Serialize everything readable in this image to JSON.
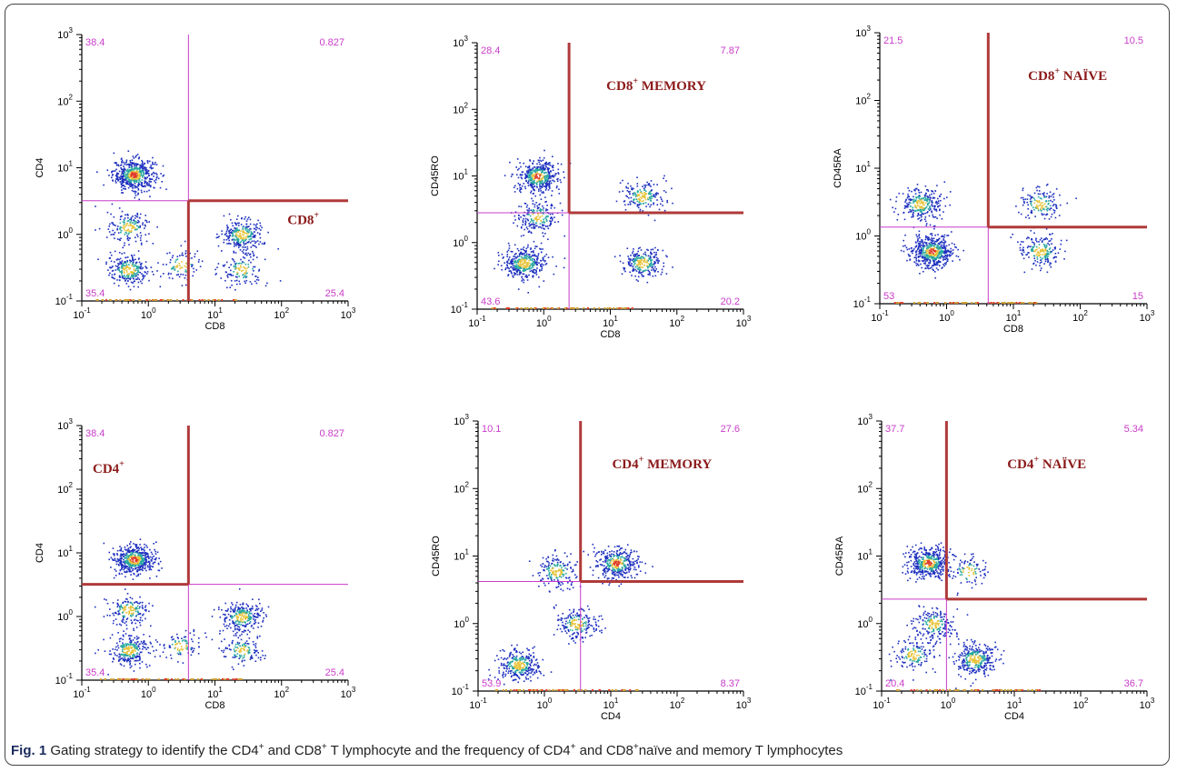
{
  "chart_data": [
    {
      "type": "scatter",
      "scale": "log",
      "xlim": [
        0.1,
        1000
      ],
      "ylim": [
        0.1,
        1000
      ],
      "xlabel": "CD8",
      "ylabel": "CD4",
      "xticks": [
        "10",
        "10",
        "10",
        "10",
        "10"
      ],
      "xtick_exps": [
        "-1",
        "0",
        "1",
        "2",
        "3"
      ],
      "yticks": [
        "10",
        "10",
        "10",
        "10",
        "10"
      ],
      "ytick_exps": [
        "-1",
        "0",
        "1",
        "2",
        "3"
      ],
      "gate": {
        "x": 4,
        "y": 3.2
      },
      "gated_quadrant": "lower-right",
      "quadrant_percent": {
        "upper_left": "38.4",
        "upper_right": "0.827",
        "lower_left": "35.4",
        "lower_right": "25.4"
      },
      "annotation": {
        "main": "CD8",
        "sup": "+",
        "rest": ""
      },
      "clusters": [
        {
          "x": 0.6,
          "y": 8,
          "count": 520
        },
        {
          "x": 0.5,
          "y": 0.3,
          "count": 260
        },
        {
          "x": 0.5,
          "y": 1.3,
          "count": 170
        },
        {
          "x": 25,
          "y": 1.0,
          "count": 280
        },
        {
          "x": 25,
          "y": 0.3,
          "count": 130
        },
        {
          "x": 3,
          "y": 0.35,
          "count": 90
        }
      ]
    },
    {
      "type": "scatter",
      "scale": "log",
      "xlim": [
        0.1,
        1000
      ],
      "ylim": [
        0.1,
        1000
      ],
      "xlabel": "CD8",
      "ylabel": "CD45RO",
      "xticks": [
        "10",
        "10",
        "10",
        "10",
        "10"
      ],
      "xtick_exps": [
        "-1",
        "0",
        "1",
        "2",
        "3"
      ],
      "yticks": [
        "10",
        "10",
        "10",
        "10",
        "10"
      ],
      "ytick_exps": [
        "-1",
        "0",
        "1",
        "2",
        "3"
      ],
      "gate": {
        "x": 2.4,
        "y": 2.8
      },
      "gated_quadrant": "upper-right",
      "quadrant_percent": {
        "upper_left": "28.4",
        "upper_right": "7.87",
        "lower_left": "43.6",
        "lower_right": "20.2"
      },
      "annotation": {
        "main": "CD8",
        "sup": "+",
        "rest": " MEMORY"
      },
      "clusters": [
        {
          "x": 0.8,
          "y": 10,
          "count": 420
        },
        {
          "x": 0.5,
          "y": 0.5,
          "count": 380
        },
        {
          "x": 0.8,
          "y": 2.5,
          "count": 200
        },
        {
          "x": 30,
          "y": 5,
          "count": 180
        },
        {
          "x": 30,
          "y": 0.5,
          "count": 240
        }
      ]
    },
    {
      "type": "scatter",
      "scale": "log",
      "xlim": [
        0.1,
        1000
      ],
      "ylim": [
        0.1,
        1000
      ],
      "xlabel": "CD8",
      "ylabel": "CD45RA",
      "xticks": [
        "10",
        "10",
        "10",
        "10",
        "10"
      ],
      "xtick_exps": [
        "-1",
        "0",
        "1",
        "2",
        "3"
      ],
      "yticks": [
        "10",
        "10",
        "10",
        "10",
        "10"
      ],
      "ytick_exps": [
        "-1",
        "0",
        "1",
        "2",
        "3"
      ],
      "gate": {
        "x": 4.2,
        "y": 1.35
      },
      "gated_quadrant": "upper-right",
      "quadrant_percent": {
        "upper_left": "21.5",
        "upper_right": "10.5",
        "lower_left": "53",
        "lower_right": "15"
      },
      "annotation": {
        "main": "CD8",
        "sup": "+",
        "rest": " NAÏVE"
      },
      "clusters": [
        {
          "x": 0.6,
          "y": 0.6,
          "count": 520
        },
        {
          "x": 0.4,
          "y": 3,
          "count": 280
        },
        {
          "x": 25,
          "y": 0.6,
          "count": 200
        },
        {
          "x": 25,
          "y": 3,
          "count": 150
        }
      ]
    },
    {
      "type": "scatter",
      "scale": "log",
      "xlim": [
        0.1,
        1000
      ],
      "ylim": [
        0.1,
        1000
      ],
      "xlabel": "CD8",
      "ylabel": "CD4",
      "xticks": [
        "10",
        "10",
        "10",
        "10",
        "10"
      ],
      "xtick_exps": [
        "-1",
        "0",
        "1",
        "2",
        "3"
      ],
      "yticks": [
        "10",
        "10",
        "10",
        "10",
        "10"
      ],
      "ytick_exps": [
        "-1",
        "0",
        "1",
        "2",
        "3"
      ],
      "gate": {
        "x": 4,
        "y": 3.2
      },
      "gated_quadrant": "upper-left",
      "quadrant_percent": {
        "upper_left": "38.4",
        "upper_right": "0.827",
        "lower_left": "35.4",
        "lower_right": "25.4"
      },
      "annotation": {
        "main": "CD4",
        "sup": "+",
        "rest": ""
      },
      "clusters": [
        {
          "x": 0.6,
          "y": 8,
          "count": 520
        },
        {
          "x": 0.5,
          "y": 0.3,
          "count": 260
        },
        {
          "x": 0.5,
          "y": 1.3,
          "count": 170
        },
        {
          "x": 25,
          "y": 1.0,
          "count": 280
        },
        {
          "x": 25,
          "y": 0.3,
          "count": 130
        },
        {
          "x": 3,
          "y": 0.35,
          "count": 90
        }
      ]
    },
    {
      "type": "scatter",
      "scale": "log",
      "xlim": [
        0.1,
        1000
      ],
      "ylim": [
        0.1,
        1000
      ],
      "xlabel": "CD4",
      "ylabel": "CD45RO",
      "xticks": [
        "10",
        "10",
        "10",
        "10",
        "10"
      ],
      "xtick_exps": [
        "-1",
        "0",
        "1",
        "2",
        "3"
      ],
      "yticks": [
        "10",
        "10",
        "10",
        "10",
        "10"
      ],
      "ytick_exps": [
        "-1",
        "0",
        "1",
        "2",
        "3"
      ],
      "gate": {
        "x": 3.5,
        "y": 4.2
      },
      "gated_quadrant": "upper-right",
      "quadrant_percent": {
        "upper_left": "10.1",
        "upper_right": "27.6",
        "lower_left": "53.9",
        "lower_right": "8.37"
      },
      "annotation": {
        "main": "CD4",
        "sup": "+",
        "rest": " MEMORY"
      },
      "clusters": [
        {
          "x": 12,
          "y": 8,
          "count": 360
        },
        {
          "x": 0.4,
          "y": 0.25,
          "count": 300
        },
        {
          "x": 1.5,
          "y": 6,
          "count": 180
        },
        {
          "x": 3,
          "y": 1.0,
          "count": 200
        }
      ]
    },
    {
      "type": "scatter",
      "scale": "log",
      "xlim": [
        0.1,
        1000
      ],
      "ylim": [
        0.1,
        1000
      ],
      "xlabel": "CD4",
      "ylabel": "CD45RA",
      "xticks": [
        "10",
        "10",
        "10",
        "10",
        "10"
      ],
      "xtick_exps": [
        "-1",
        "0",
        "1",
        "2",
        "3"
      ],
      "yticks": [
        "10",
        "10",
        "10",
        "10",
        "10"
      ],
      "ytick_exps": [
        "-1",
        "0",
        "1",
        "2",
        "3"
      ],
      "gate": {
        "x": 0.95,
        "y": 2.3
      },
      "gated_quadrant": "upper-right",
      "quadrant_percent": {
        "upper_left": "37.7",
        "upper_right": "5.34",
        "lower_left": "20.4",
        "lower_right": "36.7"
      },
      "annotation": {
        "main": "CD4",
        "sup": "+",
        "rest": " NAÏVE"
      },
      "clusters": [
        {
          "x": 0.5,
          "y": 8,
          "count": 460
        },
        {
          "x": 2.5,
          "y": 0.3,
          "count": 320
        },
        {
          "x": 0.6,
          "y": 1.0,
          "count": 200
        },
        {
          "x": 0.3,
          "y": 0.35,
          "count": 150
        },
        {
          "x": 2,
          "y": 6,
          "count": 90
        }
      ]
    }
  ],
  "caption": {
    "label": "Fig. 1",
    "p1": " Gating strategy to identify the CD4",
    "s1": "+",
    "p2": " and CD8",
    "s2": "+",
    "p3": " T lymphocyte and the frequency of CD4",
    "s3": "+",
    "p4": " and CD8",
    "s4": "+",
    "p5": "naïve and memory T lymphocytes"
  },
  "colors": {
    "gate_line": "#b03a3a",
    "quadrant_line": "#c93cc9",
    "percent_text": "#c93cc9",
    "annotation_text": "#8b1a1a",
    "frame": "#444444",
    "dot_low": "#1d2fbf",
    "dot_mid": "#29a8a0",
    "dot_high": "#e8c43a",
    "dot_peak": "#e03a2a"
  }
}
